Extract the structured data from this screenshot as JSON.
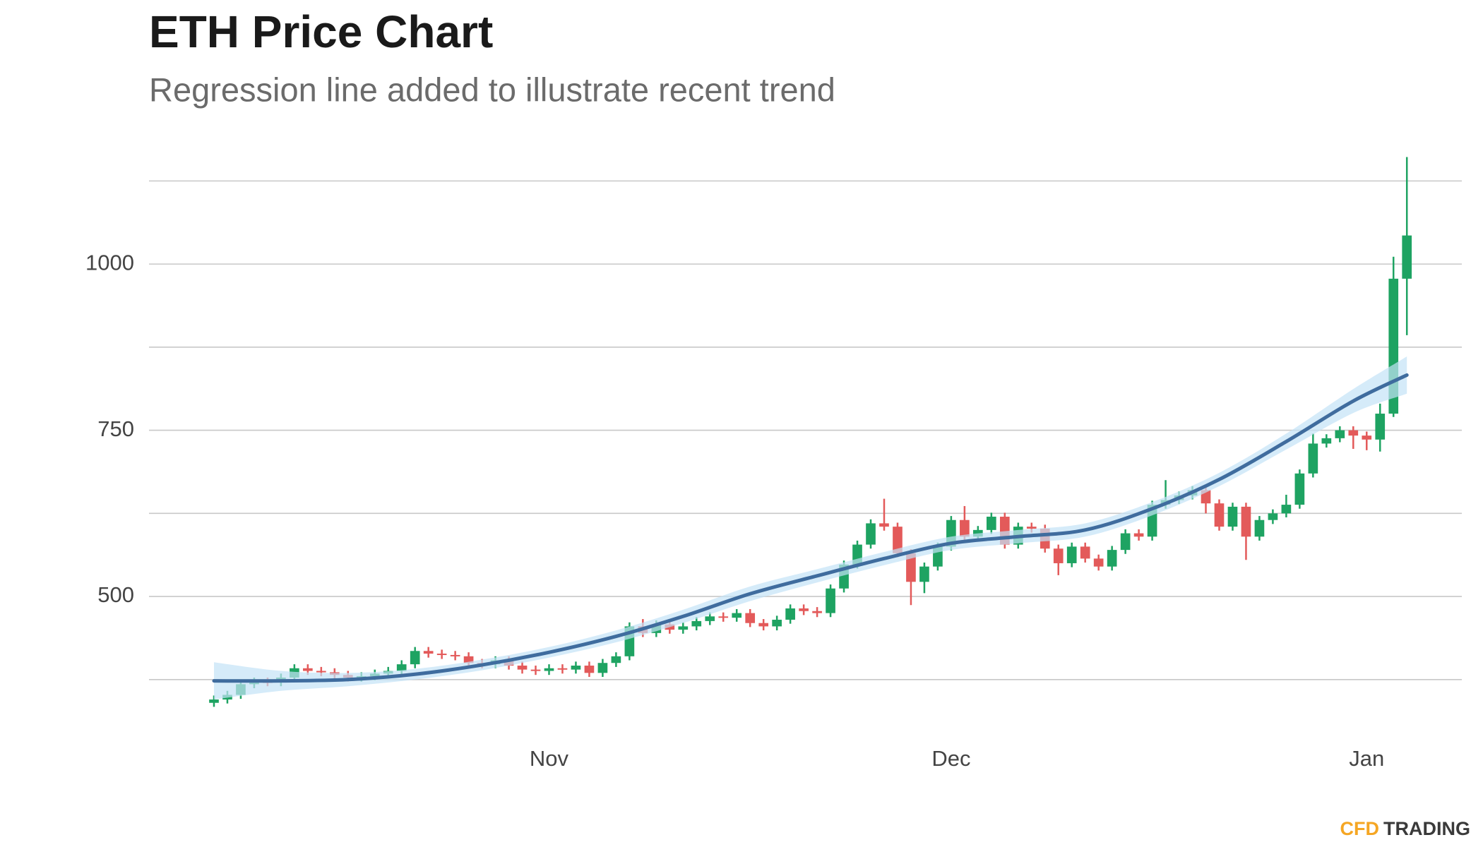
{
  "chart_data": {
    "type": "candlestick",
    "title": "ETH Price Chart",
    "subtitle": "Regression line added to illustrate recent trend",
    "categories": [
      null,
      null,
      null,
      null,
      null,
      null,
      null,
      null,
      null,
      null,
      null,
      null,
      null,
      null,
      null,
      null,
      null,
      null,
      null,
      null,
      null,
      null,
      null,
      null,
      null,
      "Nov",
      null,
      null,
      null,
      null,
      null,
      null,
      null,
      null,
      null,
      null,
      null,
      null,
      null,
      null,
      null,
      null,
      null,
      null,
      null,
      null,
      null,
      null,
      null,
      null,
      null,
      null,
      null,
      null,
      null,
      "Dec",
      null,
      null,
      null,
      null,
      null,
      null,
      null,
      null,
      null,
      null,
      null,
      null,
      null,
      null,
      null,
      null,
      null,
      null,
      null,
      null,
      null,
      null,
      null,
      null,
      null,
      null,
      null,
      null,
      null,
      null,
      "Jan",
      null,
      null,
      null
    ],
    "series": [
      {
        "up_color": "#1ea362",
        "down_color": "#e35a5a",
        "open": [
          340,
          345,
          352,
          368,
          372,
          371,
          378,
          392,
          388,
          386,
          382,
          378,
          380,
          384,
          388,
          398,
          418,
          414,
          412,
          410,
          400,
          398,
          404,
          396,
          390,
          388,
          392,
          390,
          396,
          385,
          400,
          410,
          455,
          445,
          458,
          450,
          455,
          463,
          470,
          468,
          475,
          460,
          455,
          465,
          482,
          478,
          475,
          512,
          548,
          578,
          610,
          605,
          565,
          522,
          545,
          575,
          615,
          590,
          600,
          620,
          578,
          605,
          602,
          572,
          550,
          575,
          557,
          545,
          570,
          595,
          590,
          638,
          645,
          652,
          660,
          640,
          605,
          635,
          590,
          615,
          625,
          638,
          685,
          730,
          738,
          750,
          742,
          736,
          775,
          978
        ],
        "high": [
          351,
          358,
          374,
          378,
          378,
          384,
          398,
          398,
          394,
          392,
          388,
          386,
          390,
          394,
          404,
          424,
          424,
          420,
          418,
          416,
          406,
          410,
          410,
          402,
          396,
          398,
          398,
          402,
          402,
          406,
          416,
          461,
          466,
          464,
          464,
          461,
          469,
          476,
          476,
          481,
          481,
          466,
          471,
          488,
          488,
          484,
          518,
          554,
          584,
          616,
          647,
          611,
          571,
          551,
          581,
          621,
          636,
          606,
          626,
          626,
          611,
          611,
          608,
          578,
          581,
          581,
          563,
          576,
          601,
          601,
          644,
          675,
          658,
          666,
          666,
          646,
          641,
          641,
          621,
          631,
          653,
          691,
          745,
          744,
          756,
          756,
          748,
          790,
          1011,
          1161
        ],
        "low": [
          334,
          339,
          346,
          362,
          365,
          365,
          372,
          382,
          380,
          376,
          372,
          372,
          374,
          378,
          382,
          392,
          408,
          406,
          404,
          394,
          392,
          392,
          390,
          384,
          382,
          382,
          384,
          384,
          379,
          379,
          394,
          404,
          439,
          439,
          444,
          444,
          449,
          457,
          462,
          462,
          454,
          449,
          449,
          459,
          472,
          469,
          469,
          506,
          542,
          572,
          599,
          559,
          487,
          505,
          539,
          569,
          584,
          584,
          594,
          572,
          572,
          596,
          566,
          532,
          544,
          551,
          539,
          539,
          564,
          584,
          584,
          632,
          639,
          646,
          625,
          599,
          599,
          555,
          584,
          609,
          619,
          632,
          679,
          724,
          732,
          722,
          720,
          718,
          770,
          893
        ],
        "close": [
          345,
          352,
          368,
          372,
          371,
          378,
          392,
          388,
          386,
          382,
          378,
          380,
          384,
          388,
          398,
          418,
          414,
          412,
          410,
          400,
          398,
          404,
          396,
          390,
          388,
          392,
          390,
          396,
          385,
          400,
          410,
          455,
          445,
          458,
          450,
          455,
          463,
          470,
          468,
          475,
          460,
          455,
          465,
          482,
          478,
          475,
          512,
          548,
          578,
          610,
          605,
          565,
          522,
          545,
          575,
          615,
          590,
          600,
          620,
          578,
          605,
          602,
          572,
          550,
          575,
          557,
          545,
          570,
          595,
          590,
          638,
          645,
          652,
          660,
          640,
          605,
          635,
          590,
          615,
          625,
          638,
          685,
          730,
          738,
          750,
          742,
          736,
          775,
          978,
          1043
        ]
      }
    ],
    "trend": {
      "color": "#3f6c9e",
      "band_color": "#c3e2f6",
      "x": [
        0,
        5,
        10,
        15,
        20,
        25,
        30,
        35,
        40,
        45,
        50,
        55,
        60,
        65,
        70,
        75,
        80,
        85,
        89
      ],
      "values": [
        373,
        373,
        375,
        383,
        397,
        416,
        440,
        470,
        504,
        531,
        557,
        580,
        590,
        600,
        632,
        676,
        733,
        794,
        833
      ],
      "lower": [
        345,
        358,
        365,
        375,
        389,
        408,
        431,
        460,
        493,
        521,
        547,
        570,
        580,
        590,
        622,
        666,
        721,
        776,
        805
      ],
      "upper": [
        401,
        388,
        385,
        391,
        405,
        424,
        449,
        480,
        515,
        541,
        567,
        590,
        600,
        610,
        642,
        686,
        745,
        812,
        861
      ]
    },
    "ylim": [
      310,
      1170
    ],
    "yticks": [
      500,
      750,
      1000
    ],
    "ygrid": [
      375,
      500,
      625,
      750,
      875,
      1000,
      1125
    ],
    "grid": true,
    "watermark": {
      "brand": "CFD",
      "rest": "TRADING"
    }
  }
}
